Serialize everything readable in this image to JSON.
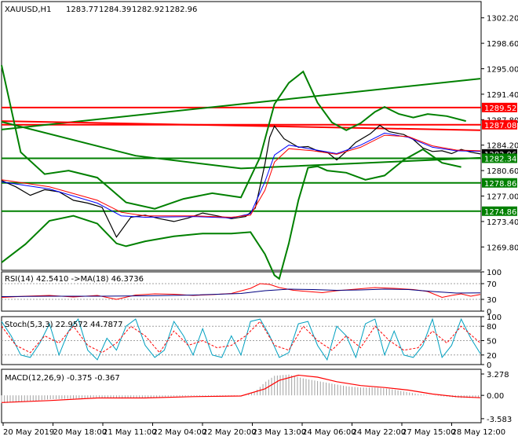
{
  "chart_data": {
    "type": "line",
    "symbol": "XAUUSD,H1",
    "ohlc": {
      "open": "1283.77",
      "high": "1284.39",
      "low": "1282.92",
      "close": "1282.96"
    },
    "price_axis": {
      "ticks": [
        "1302.20",
        "1298.60",
        "1295.00",
        "1291.40",
        "1287.80",
        "1284.20",
        "1280.60",
        "1277.00",
        "1273.40",
        "1269.80"
      ],
      "ylim": [
        1266.5,
        1304.5
      ]
    },
    "time_axis": {
      "labels": [
        "20 May 2019",
        "20 May 18:00",
        "21 May 11:00",
        "22 May 04:00",
        "22 May 20:00",
        "23 May 13:00",
        "24 May 06:00",
        "24 May 22:00",
        "27 May 15:00",
        "28 May 12:00"
      ]
    },
    "price_tags": [
      {
        "text": "1289.52",
        "value": 1289.52,
        "color": "#ff0000"
      },
      {
        "text": "1287.08",
        "value": 1287.08,
        "color": "#ff0000"
      },
      {
        "text": "1282.96",
        "value": 1282.96,
        "color": "#000000"
      },
      {
        "text": "1282.34",
        "value": 1282.34,
        "color": "#008000"
      },
      {
        "text": "1278.86",
        "value": 1278.86,
        "color": "#008000"
      },
      {
        "text": "1274.86",
        "value": 1274.86,
        "color": "#008000"
      }
    ],
    "horizontal_levels": [
      {
        "value": 1289.52,
        "color": "#ff0000"
      },
      {
        "value": 1287.08,
        "color": "#ff0000"
      },
      {
        "value": 1282.34,
        "color": "#008000"
      },
      {
        "value": 1278.86,
        "color": "#008000"
      },
      {
        "value": 1274.86,
        "color": "#008000"
      }
    ],
    "trend_lines": [
      {
        "color": "#008000",
        "points": [
          [
            0,
            1286.4
          ],
          [
            100,
            1293.6
          ]
        ]
      },
      {
        "color": "#ff0000",
        "points": [
          [
            0,
            1287.6
          ],
          [
            100,
            1286.3
          ]
        ]
      },
      {
        "color": "#008000",
        "points": [
          [
            0,
            1287.5
          ],
          [
            28,
            1282.7
          ],
          [
            50,
            1280.9
          ],
          [
            100,
            1282.4
          ]
        ]
      }
    ],
    "price_series": [
      {
        "kind": "close",
        "color": "#000000",
        "x": [
          0,
          3,
          6,
          9,
          12,
          15,
          18,
          21,
          24,
          27,
          30,
          33,
          36,
          39,
          42,
          45,
          48,
          51,
          53,
          55,
          56,
          57,
          59,
          62,
          64,
          66,
          68,
          70,
          72,
          74,
          77,
          79,
          81,
          84,
          86,
          88,
          90,
          92,
          94,
          96,
          98,
          100
        ],
        "y": [
          1279.2,
          1278.3,
          1277.1,
          1277.9,
          1277.6,
          1276.4,
          1276.0,
          1275.4,
          1271.2,
          1274.0,
          1274.3,
          1273.8,
          1273.4,
          1273.9,
          1274.6,
          1274.2,
          1273.8,
          1274.1,
          1275.3,
          1281.5,
          1285.3,
          1286.9,
          1285.1,
          1283.9,
          1284.0,
          1283.4,
          1283.2,
          1282.1,
          1283.3,
          1284.6,
          1285.8,
          1287.0,
          1286.1,
          1285.7,
          1285.0,
          1283.8,
          1283.3,
          1283.4,
          1283.0,
          1283.6,
          1283.2,
          1282.96
        ]
      },
      {
        "kind": "moving-average",
        "color": "#0000ff",
        "x": [
          0,
          10,
          20,
          25,
          30,
          40,
          48,
          52,
          55,
          57,
          60,
          65,
          70,
          75,
          80,
          85,
          90,
          95,
          100
        ],
        "y": [
          1279.0,
          1278.0,
          1276.0,
          1274.2,
          1274.0,
          1274.1,
          1273.9,
          1274.5,
          1279.0,
          1282.8,
          1284.2,
          1283.6,
          1283.0,
          1284.2,
          1285.9,
          1285.3,
          1283.9,
          1283.4,
          1283.3
        ]
      },
      {
        "kind": "moving-average",
        "color": "#ff0000",
        "x": [
          0,
          10,
          20,
          25,
          30,
          40,
          48,
          52,
          55,
          57,
          60,
          65,
          70,
          75,
          80,
          85,
          90,
          95,
          100
        ],
        "y": [
          1279.3,
          1278.3,
          1276.4,
          1274.7,
          1274.2,
          1274.2,
          1274.0,
          1274.3,
          1277.8,
          1281.8,
          1283.7,
          1283.4,
          1282.9,
          1283.9,
          1285.6,
          1285.4,
          1284.1,
          1283.5,
          1283.4
        ]
      },
      {
        "kind": "bollinger-upper",
        "color": "#008000",
        "x": [
          0,
          4,
          9,
          14,
          20,
          26,
          32,
          38,
          44,
          50,
          54,
          57,
          60,
          63,
          66,
          69,
          72,
          75,
          78,
          80,
          83,
          86,
          89,
          93,
          97
        ],
        "y": [
          1295.5,
          1283.2,
          1280.1,
          1280.6,
          1279.6,
          1276.1,
          1275.2,
          1276.6,
          1277.4,
          1276.8,
          1282.5,
          1290.0,
          1293.0,
          1294.6,
          1290.2,
          1287.4,
          1286.3,
          1287.3,
          1288.9,
          1289.6,
          1288.6,
          1288.1,
          1288.6,
          1288.3,
          1287.6
        ]
      },
      {
        "kind": "bollinger-lower",
        "color": "#008000",
        "x": [
          0,
          5,
          10,
          15,
          20,
          24,
          26,
          30,
          36,
          42,
          48,
          52,
          55,
          57,
          58,
          60,
          62,
          64,
          66,
          68,
          72,
          76,
          80,
          84,
          88,
          92,
          96
        ],
        "y": [
          1267.6,
          1270.2,
          1273.5,
          1274.2,
          1273.1,
          1270.3,
          1269.9,
          1270.6,
          1271.3,
          1271.7,
          1271.7,
          1271.9,
          1268.8,
          1265.8,
          1265.3,
          1270.3,
          1276.4,
          1281.0,
          1281.2,
          1280.6,
          1280.3,
          1279.3,
          1279.9,
          1282.1,
          1283.6,
          1281.7,
          1281.1
        ]
      }
    ],
    "indicators": [
      {
        "name": "RSI",
        "header": "RSI(14) 42.5410  ->MA(18) 46.3736",
        "levels": [
          100,
          70,
          30,
          0
        ],
        "level_labels": [
          "100",
          "70",
          "30",
          "0"
        ],
        "series": [
          {
            "kind": "rsi",
            "color": "#ff0000",
            "x": [
              0,
              5,
              10,
              15,
              20,
              24,
              28,
              32,
              36,
              40,
              44,
              48,
              52,
              54,
              56,
              58,
              61,
              64,
              67,
              70,
              74,
              78,
              82,
              86,
              89,
              92,
              94,
              96,
              98,
              100
            ],
            "y": [
              35,
              38,
              40,
              36,
              40,
              30,
              41,
              44,
              43,
              40,
              42,
              45,
              58,
              70,
              68,
              60,
              53,
              50,
              47,
              52,
              56,
              60,
              58,
              55,
              50,
              35,
              40,
              44,
              38,
              42.5
            ]
          },
          {
            "kind": "rsi-ma",
            "color": "#000080",
            "x": [
              0,
              10,
              20,
              30,
              40,
              50,
              55,
              60,
              65,
              70,
              75,
              80,
              85,
              90,
              95,
              100
            ],
            "y": [
              37,
              38,
              38,
              39,
              41,
              45,
              52,
              56,
              55,
              53,
              54,
              56,
              55,
              50,
              46,
              46.4
            ]
          }
        ]
      },
      {
        "name": "Stochastic",
        "header": "Stoch(5,3,3) 22.9572 44.7877",
        "levels": [
          100,
          80,
          50,
          20,
          0
        ],
        "level_labels": [
          "100",
          "80",
          "50",
          "20",
          "0"
        ],
        "series": [
          {
            "kind": "stoch-main",
            "color": "#00a0c0",
            "x": [
              0,
              2,
              4,
              6,
              8,
              10,
              12,
              14,
              16,
              18,
              20,
              22,
              24,
              26,
              28,
              30,
              32,
              34,
              36,
              38,
              40,
              42,
              44,
              46,
              48,
              50,
              52,
              54,
              56,
              58,
              60,
              62,
              64,
              66,
              68,
              70,
              72,
              74,
              76,
              78,
              80,
              82,
              84,
              86,
              88,
              90,
              92,
              94,
              96,
              98,
              100
            ],
            "y": [
              90,
              60,
              20,
              15,
              45,
              85,
              20,
              70,
              95,
              30,
              10,
              55,
              30,
              80,
              95,
              40,
              15,
              30,
              90,
              60,
              20,
              75,
              20,
              15,
              60,
              20,
              90,
              95,
              60,
              15,
              25,
              85,
              90,
              40,
              10,
              80,
              60,
              15,
              85,
              95,
              20,
              70,
              20,
              15,
              40,
              95,
              15,
              40,
              95,
              55,
              23
            ]
          },
          {
            "kind": "stoch-signal",
            "color": "#ff0000",
            "x": [
              0,
              3,
              6,
              9,
              12,
              15,
              18,
              21,
              24,
              27,
              30,
              33,
              36,
              39,
              42,
              45,
              48,
              51,
              54,
              57,
              60,
              63,
              66,
              69,
              72,
              75,
              78,
              81,
              84,
              87,
              90,
              93,
              96,
              100
            ],
            "y": [
              80,
              40,
              25,
              60,
              45,
              80,
              40,
              25,
              45,
              80,
              60,
              25,
              70,
              40,
              50,
              35,
              40,
              60,
              90,
              40,
              30,
              80,
              50,
              30,
              60,
              35,
              80,
              50,
              30,
              35,
              70,
              45,
              80,
              45
            ]
          }
        ]
      },
      {
        "name": "MACD",
        "header": "MACD(12,26,9) -0.375 -0.367",
        "levels": [
          3.278,
          0,
          -3.583
        ],
        "level_labels": [
          "3.278",
          "0.00",
          "-3.583"
        ],
        "histogram_color": "#a0a0a0",
        "histogram": {
          "x": [
            0,
            5,
            10,
            15,
            20,
            25,
            30,
            35,
            40,
            45,
            50,
            53,
            55,
            57,
            60,
            63,
            66,
            69,
            72,
            75,
            78,
            81,
            84,
            87,
            90,
            93,
            96,
            100
          ],
          "y": [
            -1.2,
            -1.0,
            -0.6,
            -0.5,
            -0.3,
            -0.5,
            -0.4,
            -0.2,
            -0.1,
            -0.2,
            -0.1,
            0.6,
            2.0,
            3.0,
            3.2,
            2.6,
            2.2,
            1.8,
            1.4,
            1.2,
            1.2,
            1.0,
            0.6,
            0.2,
            0.0,
            -0.2,
            -0.4,
            -0.375
          ]
        },
        "signal": {
          "color": "#ff0000",
          "x": [
            0,
            10,
            20,
            30,
            40,
            50,
            55,
            58,
            62,
            66,
            70,
            75,
            80,
            85,
            90,
            95,
            100
          ],
          "y": [
            -1.1,
            -0.8,
            -0.4,
            -0.4,
            -0.2,
            -0.1,
            1.0,
            2.3,
            3.1,
            2.8,
            2.1,
            1.5,
            1.2,
            0.8,
            0.2,
            -0.2,
            -0.367
          ]
        }
      }
    ]
  }
}
